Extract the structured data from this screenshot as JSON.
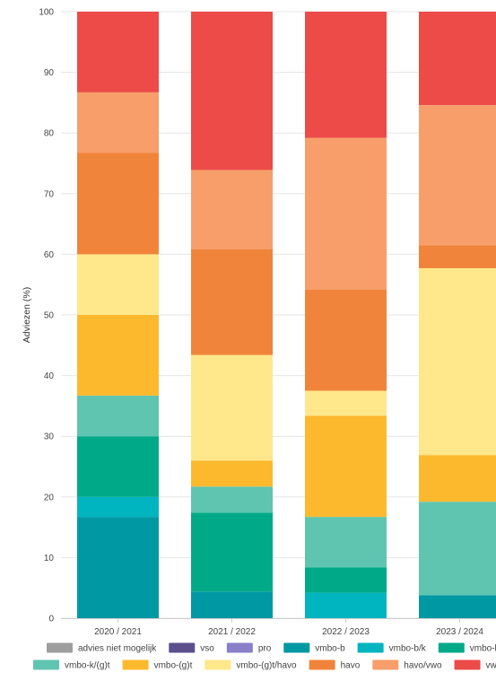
{
  "chart_data": {
    "type": "bar",
    "stacked": true,
    "categories": [
      "2020 / 2021",
      "2021 / 2022",
      "2022 / 2023",
      "2023 / 2024"
    ],
    "ylabel": "Adviezen (%)",
    "ylim": [
      0,
      100
    ],
    "yticks": [
      0,
      10,
      20,
      30,
      40,
      50,
      60,
      70,
      80,
      90,
      100
    ],
    "grid": true,
    "legend_position": "bottom",
    "series": [
      {
        "name": "advies niet mogelijk",
        "color": "#9e9e9e",
        "values": [
          0,
          0,
          0,
          0
        ]
      },
      {
        "name": "vso",
        "color": "#5b4f8c",
        "values": [
          0,
          0,
          0,
          0
        ]
      },
      {
        "name": "pro",
        "color": "#8a7fc9",
        "values": [
          0,
          0,
          0,
          0
        ]
      },
      {
        "name": "vmbo-b",
        "color": "#0099a3",
        "values": [
          16.7,
          4.4,
          0,
          3.8
        ]
      },
      {
        "name": "vmbo-b/k",
        "color": "#00b5c0",
        "values": [
          3.3,
          0,
          4.2,
          0
        ]
      },
      {
        "name": "vmbo-k",
        "color": "#00aa88",
        "values": [
          10.0,
          13.0,
          4.2,
          0
        ]
      },
      {
        "name": "vmbo-k/(g)t",
        "color": "#5fc4b0",
        "values": [
          6.7,
          4.3,
          8.3,
          15.4
        ]
      },
      {
        "name": "vmbo-(g)t",
        "color": "#fdb92e",
        "values": [
          13.3,
          4.3,
          16.7,
          7.7
        ]
      },
      {
        "name": "vmbo-(g)t/havo",
        "color": "#fee88b",
        "values": [
          10.0,
          17.4,
          4.1,
          30.8
        ]
      },
      {
        "name": "havo",
        "color": "#f0843a",
        "values": [
          16.7,
          17.4,
          16.7,
          3.8
        ]
      },
      {
        "name": "havo/vwo",
        "color": "#f79e6a",
        "values": [
          10.0,
          13.1,
          25.0,
          23.1
        ]
      },
      {
        "name": "vwo",
        "color": "#ec4b48",
        "values": [
          13.3,
          26.1,
          20.8,
          15.4
        ]
      }
    ],
    "legend_rows": [
      [
        "advies niet mogelijk",
        "vso",
        "pro",
        "vmbo-b",
        "vmbo-b/k",
        "vmbo-k"
      ],
      [
        "vmbo-k/(g)t",
        "vmbo-(g)t",
        "vmbo-(g)t/havo",
        "havo",
        "havo/vwo",
        "vwo"
      ]
    ]
  }
}
